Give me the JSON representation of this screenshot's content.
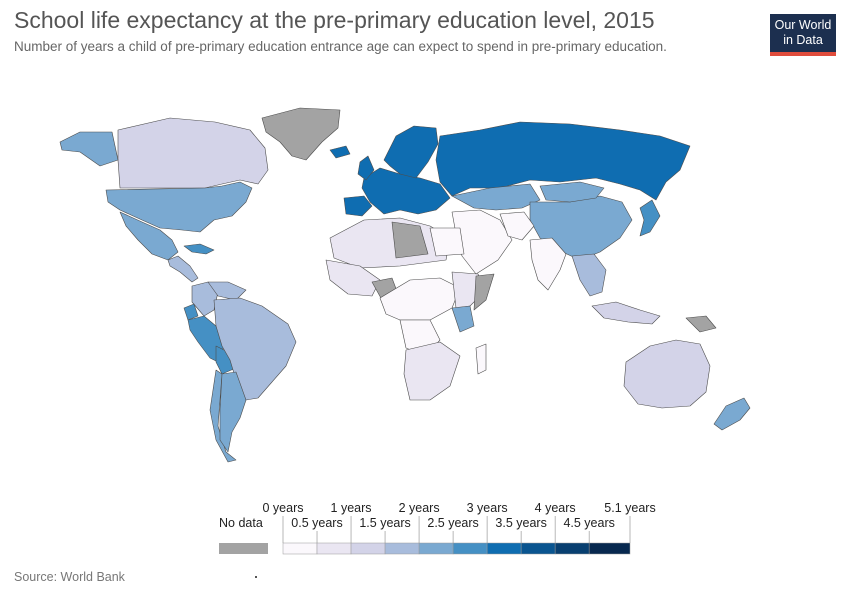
{
  "header": {
    "title": "School life expectancy at the pre-primary education level, 2015",
    "subtitle": "Number of years a child of pre-primary education entrance age can expect to spend in pre-primary education."
  },
  "logo": {
    "line1": "Our World",
    "line2": "in Data",
    "bg": "#1c2f4f",
    "accent": "#e04c3c"
  },
  "footer": {
    "source": "Source: World Bank"
  },
  "legend": {
    "no_data_label": "No data",
    "no_data_color": "#a3a3a3",
    "top_labels": [
      "0 years",
      "1 years",
      "2 years",
      "3 years",
      "4 years",
      "5.1 years"
    ],
    "bottom_labels": [
      "0.5 years",
      "1.5 years",
      "2.5 years",
      "3.5 years",
      "4.5 years"
    ],
    "bins": [
      {
        "min": 0,
        "max": 0.5,
        "color": "#fbf8fc"
      },
      {
        "min": 0.5,
        "max": 1,
        "color": "#eae6f2"
      },
      {
        "min": 1,
        "max": 1.5,
        "color": "#d3d3e8"
      },
      {
        "min": 1.5,
        "max": 2,
        "color": "#a8bcdc"
      },
      {
        "min": 2,
        "max": 2.5,
        "color": "#7aa9d1"
      },
      {
        "min": 2.5,
        "max": 3,
        "color": "#4590c4"
      },
      {
        "min": 3,
        "max": 3.5,
        "color": "#0f6db1"
      },
      {
        "min": 3.5,
        "max": 4,
        "color": "#0a5590"
      },
      {
        "min": 4,
        "max": 4.5,
        "color": "#083f70"
      },
      {
        "min": 4.5,
        "max": 5.1,
        "color": "#07284f"
      }
    ]
  },
  "map_data": {
    "regions": [
      {
        "name": "Greenland",
        "value": null
      },
      {
        "name": "Canada",
        "value": 1.2
      },
      {
        "name": "Alaska",
        "value": 2.2
      },
      {
        "name": "United States",
        "value": 2.2
      },
      {
        "name": "Mexico",
        "value": 2.3
      },
      {
        "name": "Central America",
        "value": 1.6
      },
      {
        "name": "Cuba",
        "value": 2.6
      },
      {
        "name": "Colombia",
        "value": 1.7
      },
      {
        "name": "Venezuela",
        "value": 1.8
      },
      {
        "name": "Peru",
        "value": 2.9
      },
      {
        "name": "Ecuador",
        "value": 2.5
      },
      {
        "name": "Bolivia",
        "value": 2.6
      },
      {
        "name": "Brazil",
        "value": 1.8
      },
      {
        "name": "Chile",
        "value": 2.3
      },
      {
        "name": "Argentina",
        "value": 2.3
      },
      {
        "name": "Western Europe",
        "value": 3.1
      },
      {
        "name": "Scandinavia",
        "value": 3.4
      },
      {
        "name": "Iceland",
        "value": 3.1
      },
      {
        "name": "United Kingdom",
        "value": 3.2
      },
      {
        "name": "Spain",
        "value": 3.1
      },
      {
        "name": "Russia",
        "value": 3.2
      },
      {
        "name": "Kazakhstan",
        "value": 2.1
      },
      {
        "name": "China",
        "value": 2.1
      },
      {
        "name": "Mongolia",
        "value": 2.4
      },
      {
        "name": "Japan",
        "value": 2.9
      },
      {
        "name": "India",
        "value": 0.2
      },
      {
        "name": "Middle East",
        "value": 0.4
      },
      {
        "name": "Iran",
        "value": 0.4
      },
      {
        "name": "Southeast Asia",
        "value": 1.6
      },
      {
        "name": "Indonesia",
        "value": 1.2
      },
      {
        "name": "Papua New Guinea",
        "value": null
      },
      {
        "name": "Australia",
        "value": 1.2
      },
      {
        "name": "New Zealand",
        "value": 2.0
      },
      {
        "name": "North Africa",
        "value": 0.7
      },
      {
        "name": "Libya",
        "value": null
      },
      {
        "name": "Egypt",
        "value": 0.3
      },
      {
        "name": "West Africa",
        "value": 0.6
      },
      {
        "name": "Nigeria",
        "value": null
      },
      {
        "name": "Central Africa",
        "value": 0.3
      },
      {
        "name": "DR Congo",
        "value": 0.2
      },
      {
        "name": "East Africa",
        "value": 0.5
      },
      {
        "name": "Kenya",
        "value": 2.2
      },
      {
        "name": "Somalia",
        "value": null
      },
      {
        "name": "Southern Africa",
        "value": 0.6
      },
      {
        "name": "Madagascar",
        "value": 0.4
      }
    ]
  }
}
